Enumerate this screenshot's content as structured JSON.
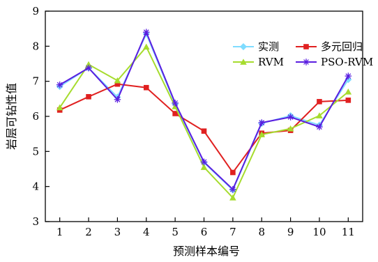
{
  "chart_data": {
    "type": "line",
    "title": "",
    "xlabel": "预测样本编号",
    "ylabel": "岩层可钻性值",
    "x": [
      1,
      2,
      3,
      4,
      5,
      6,
      7,
      8,
      9,
      10,
      11
    ],
    "xlim": [
      0.5,
      11.5
    ],
    "ylim": [
      3,
      9
    ],
    "yticks": [
      3,
      4,
      5,
      6,
      7,
      8,
      9
    ],
    "grid": false,
    "legend_position": "top-right",
    "series": [
      {
        "name": "实测",
        "color": "#7fdcff",
        "marker": "diamond",
        "values": [
          6.85,
          7.38,
          6.55,
          8.35,
          6.35,
          4.68,
          3.9,
          5.8,
          6.02,
          5.75,
          7.05
        ]
      },
      {
        "name": "多元回归",
        "color": "#e02020",
        "marker": "square",
        "values": [
          6.18,
          6.56,
          6.92,
          6.82,
          6.08,
          5.58,
          4.4,
          5.52,
          5.6,
          6.42,
          6.46
        ]
      },
      {
        "name": "RVM",
        "color": "#a6dc2e",
        "marker": "triangle",
        "values": [
          6.25,
          7.48,
          7.02,
          7.98,
          6.28,
          4.55,
          3.68,
          5.48,
          5.65,
          6.02,
          6.7
        ]
      },
      {
        "name": "PSO-RVM",
        "color": "#5a1ee0",
        "marker": "asterisk",
        "values": [
          6.9,
          7.38,
          6.48,
          8.4,
          6.38,
          4.7,
          3.92,
          5.82,
          5.98,
          5.7,
          7.15
        ]
      }
    ]
  }
}
